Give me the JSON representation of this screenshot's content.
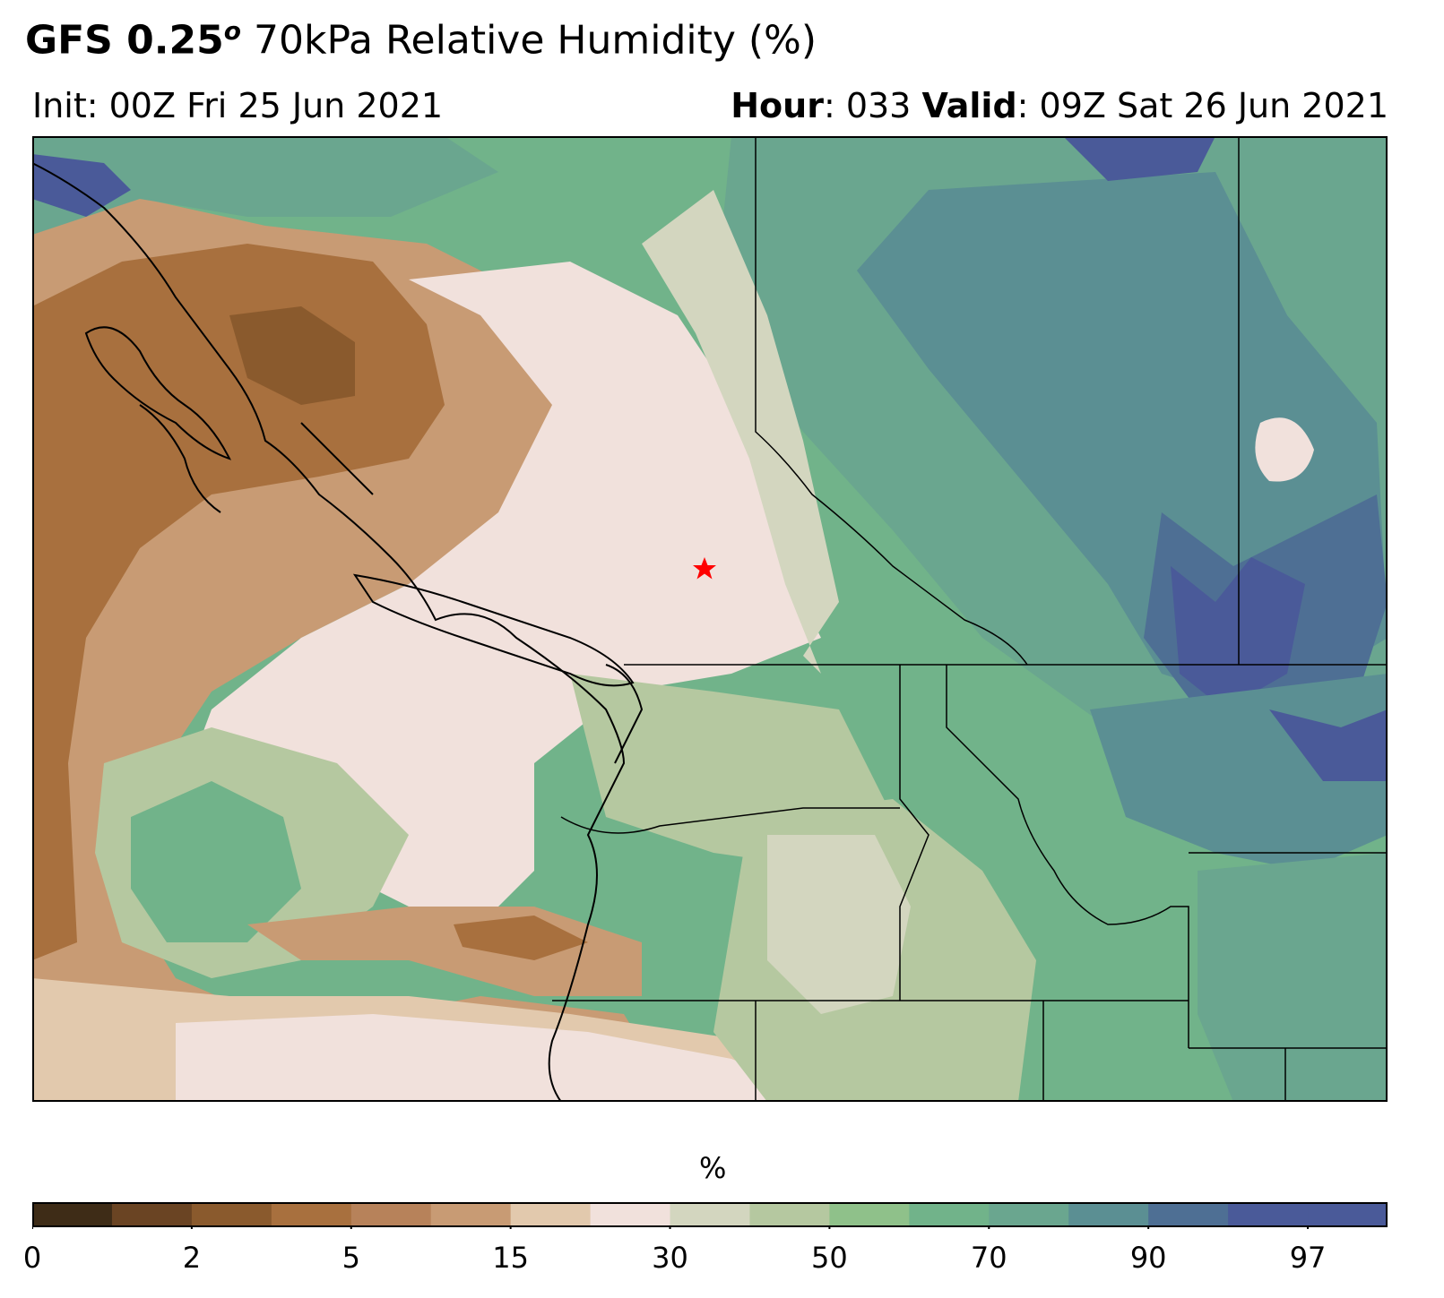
{
  "header": {
    "title_bold": "GFS 0.25",
    "title_sup": "o",
    "title_rest": " 70kPa Relative Humidity (%)",
    "init": "Init: 00Z Fri 25 Jun 2021",
    "hour_label": "Hour",
    "hour_value": ": 033  ",
    "valid_label": "Valid",
    "valid_value": ": 09Z Sat 26 Jun 2021"
  },
  "map": {
    "marker": "red-star",
    "fill_colors": {
      "d0": "#3e2c17",
      "d1": "#6a4423",
      "d2": "#8a5a2d",
      "d3": "#a8703e",
      "d4": "#b7825a",
      "d5": "#c89b74",
      "d6": "#e2c9ad",
      "d7": "#f1e1dc",
      "d8": "#d3d6bf",
      "d9": "#b5c8a0",
      "d10": "#8fc18a",
      "d11": "#71b38a",
      "d12": "#6aa68f",
      "d13": "#5b8f93",
      "d14": "#4e6f94",
      "d15": "#4a5a99"
    }
  },
  "colorbar": {
    "label": "%",
    "colors": [
      "#3e2c17",
      "#6a4423",
      "#8a5a2d",
      "#a8703e",
      "#b7825a",
      "#c89b74",
      "#e2c9ad",
      "#f1e1dc",
      "#d3d6bf",
      "#b5c8a0",
      "#8fc18a",
      "#71b38a",
      "#6aa68f",
      "#5b8f93",
      "#4e6f94",
      "#4a5a99",
      "#4a5a99"
    ],
    "ticks": [
      "0",
      "2",
      "5",
      "15",
      "30",
      "50",
      "70",
      "90",
      "97"
    ]
  }
}
